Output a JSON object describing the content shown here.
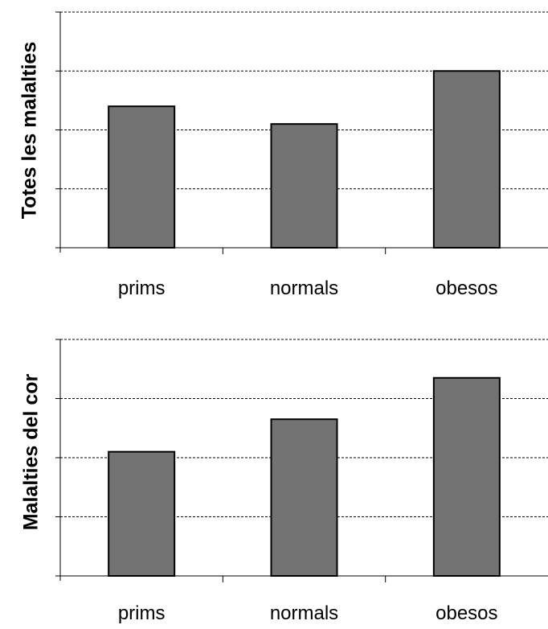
{
  "chart_data": [
    {
      "type": "bar",
      "title": "",
      "xlabel": "",
      "ylabel": "Totes les malalties",
      "categories": [
        "prims",
        "normals",
        "obesos"
      ],
      "values": [
        2.4,
        2.1,
        3.0
      ],
      "ylim": [
        0,
        4
      ],
      "yticks": [
        0,
        1,
        2,
        3,
        4
      ],
      "grid": true,
      "bar_color": "#737373"
    },
    {
      "type": "bar",
      "title": "",
      "xlabel": "",
      "ylabel": "Malalties del cor",
      "categories": [
        "prims",
        "normals",
        "obesos"
      ],
      "values": [
        2.1,
        2.65,
        3.35
      ],
      "ylim": [
        0,
        4
      ],
      "yticks": [
        0,
        1,
        2,
        3,
        4
      ],
      "grid": true,
      "bar_color": "#737373"
    }
  ]
}
